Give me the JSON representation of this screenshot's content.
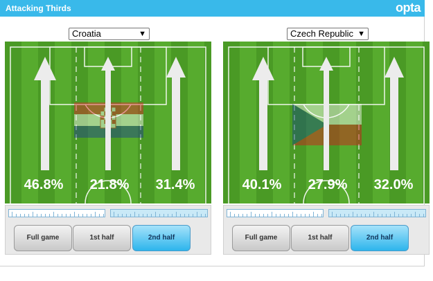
{
  "header": {
    "title": "Attacking Thirds",
    "brand": "opta"
  },
  "panels": [
    {
      "team": "Croatia",
      "percentages": [
        "46.8%",
        "21.8%",
        "31.4%"
      ],
      "buttons": [
        "Full game",
        "1st half",
        "2nd half"
      ],
      "selected_button": "2nd half"
    },
    {
      "team": "Czech Republic",
      "percentages": [
        "40.1%",
        "27.9%",
        "32.0%"
      ],
      "buttons": [
        "Full game",
        "1st half",
        "2nd half"
      ],
      "selected_button": "2nd half"
    }
  ],
  "colors": {
    "header": "#39b9ea",
    "pitch_dark": "#4a9a25",
    "pitch_light": "#57ab2e",
    "button_active": "#2db5ec"
  }
}
